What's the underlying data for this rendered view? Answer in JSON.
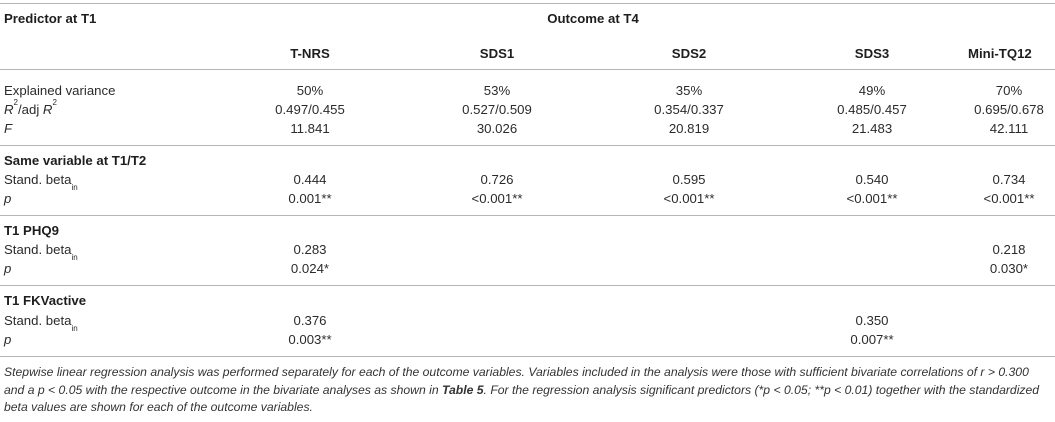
{
  "header": {
    "predictor_label": "Predictor at T1",
    "outcome_label": "Outcome at T4",
    "columns": [
      "T-NRS",
      "SDS1",
      "SDS2",
      "SDS3",
      "Mini-TQ12"
    ]
  },
  "summary_rows": [
    {
      "label": "Explained variance",
      "values": [
        "50%",
        "53%",
        "35%",
        "49%",
        "70%"
      ]
    },
    {
      "label_main": "R",
      "label_sup": "2",
      "label_mid": "/adj ",
      "label_main2": "R",
      "label_sup2": "2",
      "values": [
        "0.497/0.455",
        "0.527/0.509",
        "0.354/0.337",
        "0.485/0.457",
        "0.695/0.678"
      ]
    },
    {
      "label": "F",
      "values": [
        "11.841",
        "30.026",
        "20.819",
        "21.483",
        "42.111"
      ]
    }
  ],
  "sections": [
    {
      "title": "Same variable at T1/T2",
      "beta_label": "Stand. beta",
      "beta_sub": "in",
      "p_label": "p",
      "beta": [
        "0.444",
        "0.726",
        "0.595",
        "0.540",
        "0.734"
      ],
      "p": [
        "0.001**",
        "<0.001**",
        "<0.001**",
        "<0.001**",
        "<0.001**"
      ]
    },
    {
      "title": "T1 PHQ9",
      "beta_label": "Stand. beta",
      "beta_sub": "in",
      "p_label": "p",
      "beta": [
        "0.283",
        "",
        "",
        "",
        "0.218"
      ],
      "p": [
        "0.024*",
        "",
        "",
        "",
        "0.030*"
      ]
    },
    {
      "title": "T1 FKVactive",
      "beta_label": "Stand. beta",
      "beta_sub": "in",
      "p_label": "p",
      "beta": [
        "0.376",
        "",
        "",
        "0.350",
        ""
      ],
      "p": [
        "0.003**",
        "",
        "",
        "0.007**",
        ""
      ]
    }
  ],
  "footnote": {
    "part1": "Stepwise linear regression analysis was performed separately for each of the outcome variables. Variables included in the analysis were those with sufficient bivariate correlations of r > 0.300 and a p < 0.05 with the respective outcome in the bivariate analyses as shown in ",
    "table_ref": "Table 5",
    "part2": ". For the regression analysis significant predictors (*p < 0.05; **p < 0.01) together with the standardized beta values are shown for each of the outcome variables."
  }
}
